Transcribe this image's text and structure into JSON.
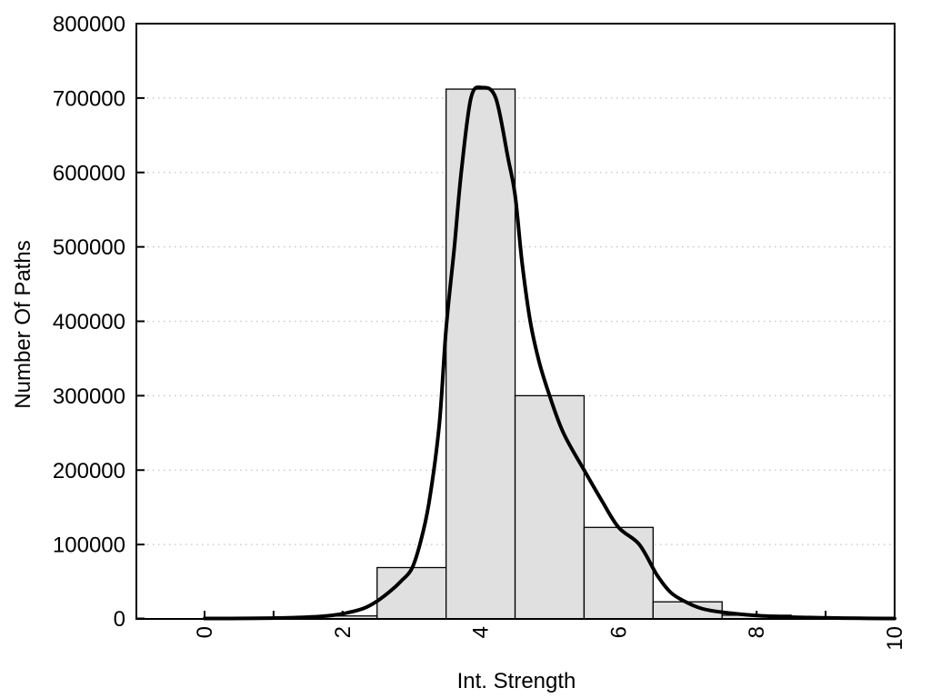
{
  "window": {
    "background": "#ffffff"
  },
  "chart_data": {
    "type": "bar",
    "subtype": "histogram-with-density-curve",
    "title": "",
    "xlabel": "Int. Strength",
    "ylabel": "Number Of Paths",
    "xlim": [
      -1,
      10
    ],
    "ylim": [
      0,
      800000
    ],
    "x_tick_positions": [
      0,
      2,
      4,
      6,
      8,
      10
    ],
    "x_tick_labels": [
      "0",
      "2",
      "4",
      "6",
      "8",
      "10"
    ],
    "x_tick_label_rotation_deg": -90,
    "x_minor_tick_positions": [
      0,
      1,
      2,
      3,
      4,
      5,
      6,
      7,
      8,
      9,
      10
    ],
    "y_tick_positions": [
      0,
      100000,
      200000,
      300000,
      400000,
      500000,
      600000,
      700000,
      800000
    ],
    "y_tick_labels": [
      "0",
      "100000",
      "200000",
      "300000",
      "400000",
      "500000",
      "600000",
      "700000",
      "800000"
    ],
    "grid": {
      "horizontal": true,
      "vertical": false,
      "style": "dotted"
    },
    "legend": "none",
    "histogram": {
      "bin_edges": [
        1.5,
        2.5,
        3.5,
        4.5,
        5.5,
        6.5,
        7.5,
        8.5
      ],
      "counts": [
        4000,
        69000,
        712000,
        300000,
        123000,
        23000,
        5000
      ]
    },
    "density_curve": {
      "name": "density-fit-curve",
      "peak": {
        "x": 4.02,
        "y": 714000
      },
      "points": [
        [
          0,
          300
        ],
        [
          0.6,
          700
        ],
        [
          1.2,
          1500
        ],
        [
          1.7,
          3500
        ],
        [
          2.0,
          7000
        ],
        [
          2.3,
          14000
        ],
        [
          2.5,
          24000
        ],
        [
          2.7,
          38000
        ],
        [
          2.85,
          51000
        ],
        [
          3.0,
          67000
        ],
        [
          3.12,
          100000
        ],
        [
          3.25,
          155000
        ],
        [
          3.4,
          260000
        ],
        [
          3.5,
          390000
        ],
        [
          3.62,
          500000
        ],
        [
          3.72,
          600000
        ],
        [
          3.86,
          700000
        ],
        [
          4.02,
          714000
        ],
        [
          4.22,
          700000
        ],
        [
          4.4,
          618000
        ],
        [
          4.5,
          570000
        ],
        [
          4.6,
          480000
        ],
        [
          4.72,
          400000
        ],
        [
          4.85,
          345000
        ],
        [
          5.0,
          300000
        ],
        [
          5.2,
          250000
        ],
        [
          5.5,
          200000
        ],
        [
          5.75,
          160000
        ],
        [
          6.0,
          123000
        ],
        [
          6.3,
          100000
        ],
        [
          6.55,
          60000
        ],
        [
          6.75,
          36000
        ],
        [
          6.95,
          24000
        ],
        [
          7.2,
          14000
        ],
        [
          7.5,
          9000
        ],
        [
          8.0,
          4500
        ],
        [
          8.5,
          2500
        ],
        [
          9.0,
          1500
        ],
        [
          9.5,
          800
        ],
        [
          10,
          400
        ]
      ]
    },
    "colors": {
      "bar_fill": "#e0e0e0",
      "bar_border": "#000000",
      "curve": "#000000",
      "grid": "#c2c2c2",
      "axis_frame": "#000000",
      "text": "#000000"
    }
  }
}
